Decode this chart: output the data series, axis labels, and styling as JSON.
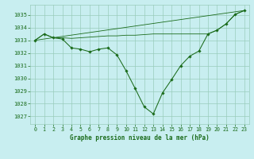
{
  "title": "Graphe pression niveau de la mer (hPa)",
  "bg_color": "#c8eef0",
  "grid_color": "#99ccbb",
  "line_color": "#1a6b1a",
  "xlim": [
    -0.5,
    23.5
  ],
  "ylim": [
    1026.4,
    1035.8
  ],
  "yticks": [
    1027,
    1028,
    1029,
    1030,
    1031,
    1032,
    1033,
    1034,
    1035
  ],
  "xticks": [
    0,
    1,
    2,
    3,
    4,
    5,
    6,
    7,
    8,
    9,
    10,
    11,
    12,
    13,
    14,
    15,
    16,
    17,
    18,
    19,
    20,
    21,
    22,
    23
  ],
  "series_main": {
    "x": [
      0,
      1,
      2,
      3,
      4,
      5,
      6,
      7,
      8,
      9,
      10,
      11,
      12,
      13,
      14,
      15,
      16,
      17,
      18,
      19,
      20,
      21,
      22,
      23
    ],
    "y": [
      1033.0,
      1033.5,
      1033.2,
      1033.1,
      1032.4,
      1032.3,
      1032.1,
      1032.3,
      1032.4,
      1031.85,
      1030.6,
      1029.2,
      1027.75,
      1027.2,
      1028.85,
      1029.9,
      1031.0,
      1031.75,
      1032.15,
      1033.5,
      1033.8,
      1034.3,
      1035.05,
      1035.35
    ]
  },
  "series_flat": {
    "x": [
      0,
      1,
      2,
      3,
      4,
      5,
      6,
      7,
      8,
      9,
      10,
      11,
      12,
      13,
      19,
      20,
      21,
      22,
      23
    ],
    "y": [
      1033.0,
      1033.5,
      1033.2,
      1033.2,
      1033.15,
      1033.2,
      1033.25,
      1033.3,
      1033.35,
      1033.35,
      1033.4,
      1033.4,
      1033.45,
      1033.5,
      1033.5,
      1033.8,
      1034.3,
      1035.05,
      1035.35
    ]
  },
  "series_straight": {
    "x": [
      0,
      23
    ],
    "y": [
      1033.0,
      1035.35
    ]
  }
}
